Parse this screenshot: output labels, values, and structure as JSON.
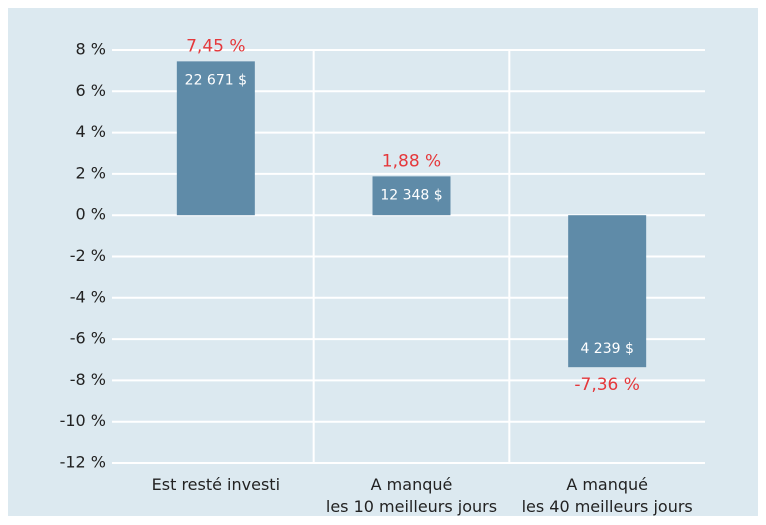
{
  "chart_data": {
    "type": "bar",
    "categories": [
      "Est resté investi",
      "A manqué\nles 10 meilleurs jours",
      "A manqué\nles 40 meilleurs jours"
    ],
    "values": [
      7.45,
      1.88,
      -7.36
    ],
    "value_labels": [
      "7,45 %",
      "1,88 %",
      "-7,36 %"
    ],
    "annotations": [
      "22 671 $",
      "12 348 $",
      "4 239 $"
    ],
    "color": "#5f8ba8",
    "value_label_color": "#e5383b",
    "ylim": [
      -12,
      8
    ],
    "yticks": [
      {
        "value": -12,
        "label": "-12 %"
      },
      {
        "value": -10,
        "label": "-10 %"
      },
      {
        "value": -8,
        "label": "-8 %"
      },
      {
        "value": -6,
        "label": "-6 %"
      },
      {
        "value": -4,
        "label": "-4 %"
      },
      {
        "value": -2,
        "label": "-2 %"
      },
      {
        "value": 0,
        "label": "0 %"
      },
      {
        "value": 2,
        "label": "2 %"
      },
      {
        "value": 4,
        "label": "4 %"
      },
      {
        "value": 6,
        "label": "6 %"
      },
      {
        "value": 8,
        "label": "8 %"
      }
    ],
    "grid": true
  }
}
